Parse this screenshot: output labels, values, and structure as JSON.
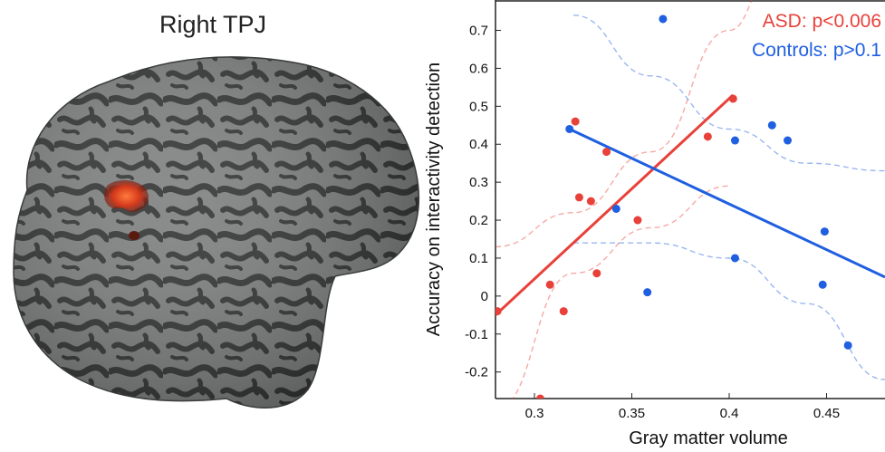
{
  "brain_panel": {
    "title": "Right TPJ"
  },
  "chart_data": {
    "type": "scatter",
    "xlabel": "Gray matter volume",
    "ylabel": "Accuracy on interactivity detection",
    "xlim": [
      0.28,
      0.48
    ],
    "ylim": [
      -0.27,
      0.78
    ],
    "xticks": [
      0.3,
      0.35,
      0.4,
      0.45
    ],
    "yticks": [
      -0.2,
      -0.1,
      0,
      0.1,
      0.2,
      0.3,
      0.4,
      0.5,
      0.6,
      0.7
    ],
    "grid": false,
    "legend_placement": "top-right",
    "series": [
      {
        "name": "ASD: p<0.006",
        "color": "#e8413a",
        "points": [
          [
            0.281,
            -0.04
          ],
          [
            0.303,
            -0.27
          ],
          [
            0.308,
            0.03
          ],
          [
            0.315,
            -0.04
          ],
          [
            0.321,
            0.46
          ],
          [
            0.323,
            0.26
          ],
          [
            0.329,
            0.25
          ],
          [
            0.332,
            0.06
          ],
          [
            0.337,
            0.38
          ],
          [
            0.353,
            0.2
          ],
          [
            0.389,
            0.42
          ],
          [
            0.402,
            0.52
          ]
        ],
        "fit_line": [
          [
            0.28,
            -0.05
          ],
          [
            0.402,
            0.53
          ]
        ],
        "ci_upper": [
          [
            0.28,
            0.13
          ],
          [
            0.32,
            0.22
          ],
          [
            0.36,
            0.38
          ],
          [
            0.4,
            0.7
          ],
          [
            0.42,
            0.82
          ]
        ],
        "ci_lower": [
          [
            0.28,
            -0.3
          ],
          [
            0.32,
            0.06
          ],
          [
            0.36,
            0.18
          ],
          [
            0.4,
            0.29
          ]
        ]
      },
      {
        "name": "Controls: p>0.1",
        "color": "#1f5fe0",
        "points": [
          [
            0.318,
            0.44
          ],
          [
            0.342,
            0.23
          ],
          [
            0.358,
            0.01
          ],
          [
            0.366,
            0.73
          ],
          [
            0.403,
            0.41
          ],
          [
            0.403,
            0.1
          ],
          [
            0.422,
            0.45
          ],
          [
            0.43,
            0.41
          ],
          [
            0.448,
            0.03
          ],
          [
            0.449,
            0.17
          ],
          [
            0.461,
            -0.13
          ]
        ],
        "fit_line": [
          [
            0.318,
            0.44
          ],
          [
            0.48,
            0.05
          ]
        ],
        "ci_upper": [
          [
            0.32,
            0.74
          ],
          [
            0.36,
            0.58
          ],
          [
            0.4,
            0.44
          ],
          [
            0.44,
            0.35
          ],
          [
            0.48,
            0.33
          ]
        ],
        "ci_lower": [
          [
            0.32,
            0.14
          ],
          [
            0.36,
            0.14
          ],
          [
            0.4,
            0.1
          ],
          [
            0.44,
            -0.02
          ],
          [
            0.48,
            -0.22
          ]
        ]
      }
    ]
  }
}
